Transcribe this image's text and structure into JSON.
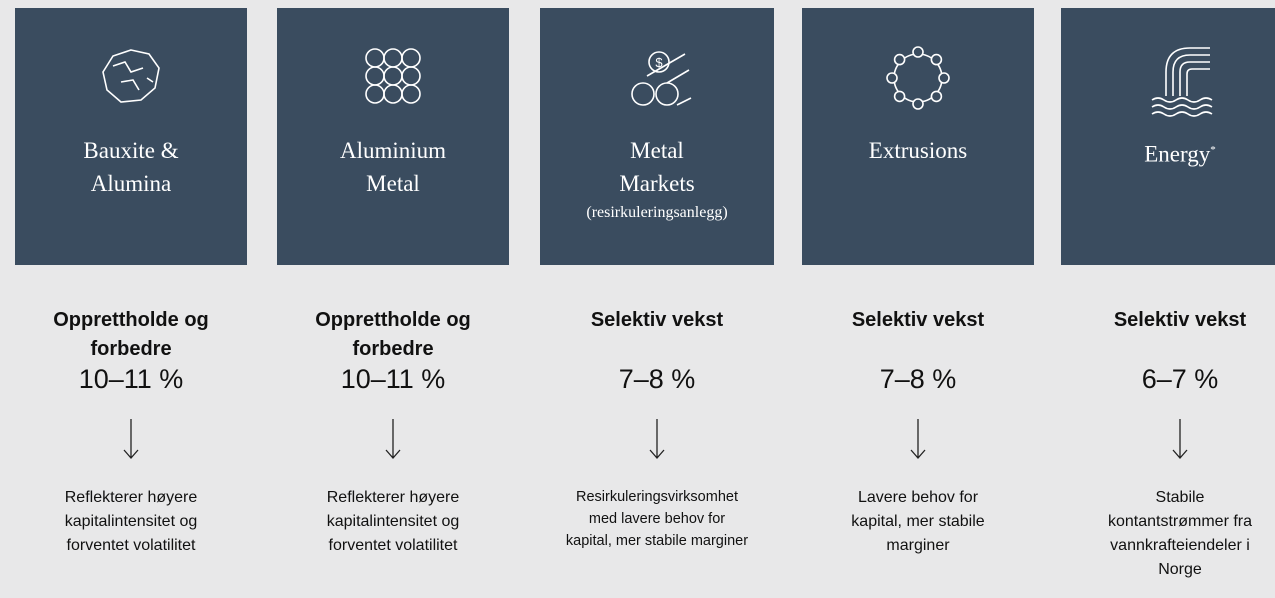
{
  "columns": [
    {
      "title": [
        "Bauxite &",
        "Alumina"
      ],
      "strategy": [
        "Opprettholde og",
        "forbedre"
      ],
      "value": "10–11 %",
      "description": [
        "Reflekterer høyere",
        "kapitalintensitet og",
        "forventet volatilitet"
      ]
    },
    {
      "title": [
        "Aluminium",
        "Metal"
      ],
      "strategy": [
        "Opprettholde og",
        "forbedre"
      ],
      "value": "10–11 %",
      "description": [
        "Reflekterer høyere",
        "kapitalintensitet og",
        "forventet volatilitet"
      ]
    },
    {
      "title": [
        "Metal",
        "Markets"
      ],
      "subtitle": "(resirkuleringsanlegg)",
      "strategy": [
        "Selektiv vekst"
      ],
      "value": "7–8 %",
      "description": [
        "Resirkuleringsvirksomhet",
        "med lavere behov for",
        "kapital, mer stabile marginer"
      ]
    },
    {
      "title": [
        "Extrusions"
      ],
      "strategy": [
        "Selektiv vekst"
      ],
      "value": "7–8 %",
      "description": [
        "Lavere behov for",
        "kapital, mer stabile",
        "marginer"
      ]
    },
    {
      "title": [
        "Energy"
      ],
      "title_note": "*",
      "strategy": [
        "Selektiv vekst"
      ],
      "value": "6–7 %",
      "description": [
        "Stabile",
        "kontantstrømmer fra",
        "vannkrafteiendeler i",
        "Norge"
      ]
    }
  ]
}
